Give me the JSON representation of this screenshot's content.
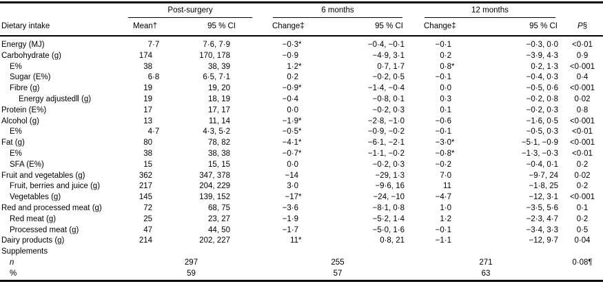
{
  "table": {
    "col_headers": {
      "dietary_intake": "Dietary intake",
      "mean": "Mean†",
      "ci": "95 % CI",
      "change": "Change‡",
      "p_label": "P",
      "p_suffix": "§"
    },
    "groups": [
      {
        "label": "Post-surgery"
      },
      {
        "label": "6 months"
      },
      {
        "label": "12 months"
      }
    ],
    "rows": [
      {
        "type": "data",
        "label": "Energy (MJ)",
        "indent": 0,
        "mean": "7·7",
        "ci_post": "7·6, 7·9",
        "change_6m": "−0·3*",
        "ci_6m": "−0·4, −0·1",
        "change_12m": "−0·1",
        "ci_12m": "−0·3, 0·0",
        "p": "<0·01"
      },
      {
        "type": "data",
        "label": "Carbohydrate (g)",
        "indent": 0,
        "mean": "174",
        "ci_post": "170, 178",
        "change_6m": "−0·9",
        "ci_6m": "−4·9, 3·1",
        "change_12m": "0·2",
        "ci_12m": "−3·9, 4·3",
        "p": "0·9"
      },
      {
        "type": "data",
        "label": "E%",
        "indent": 1,
        "mean": "38",
        "ci_post": "38, 39",
        "change_6m": "1·2*",
        "ci_6m": "0·7, 1·7",
        "change_12m": "0·8*",
        "ci_12m": "0·2, 1·3",
        "p": "<0·001"
      },
      {
        "type": "data",
        "label": "Sugar (E%)",
        "indent": 1,
        "mean": "6·8",
        "ci_post": "6·5, 7·1",
        "change_6m": "0·2",
        "ci_6m": "−0·2, 0·5",
        "change_12m": "−0·1",
        "ci_12m": "−0·4, 0·3",
        "p": "0·4"
      },
      {
        "type": "data",
        "label": "Fibre (g)",
        "indent": 1,
        "mean": "19",
        "ci_post": "19, 20",
        "change_6m": "−0·9*",
        "ci_6m": "−1·4, −0·4",
        "change_12m": "0·0",
        "ci_12m": "−0·5, 0·6",
        "p": "<0·001"
      },
      {
        "type": "data",
        "label": "Energy adjusted‖ (g)",
        "indent": 2,
        "mean": "19",
        "ci_post": "18, 19",
        "change_6m": "−0·4",
        "ci_6m": "−0·8, 0·1",
        "change_12m": "0·3",
        "ci_12m": "−0·2, 0·8",
        "p": "0·02"
      },
      {
        "type": "data",
        "label": "Protein (E%)",
        "indent": 0,
        "mean": "17",
        "ci_post": "17, 17",
        "change_6m": "0·0",
        "ci_6m": "−0·2, 0·3",
        "change_12m": "0·1",
        "ci_12m": "−0·2, 0·3",
        "p": "0·8"
      },
      {
        "type": "data",
        "label": "Alcohol (g)",
        "indent": 0,
        "mean": "13",
        "ci_post": "11, 14",
        "change_6m": "−1·9*",
        "ci_6m": "−2·8, −1·0",
        "change_12m": "−0·6",
        "ci_12m": "−1·6, 0·5",
        "p": "<0·001"
      },
      {
        "type": "data",
        "label": "E%",
        "indent": 1,
        "mean": "4·7",
        "ci_post": "4·3, 5·2",
        "change_6m": "−0·5*",
        "ci_6m": "−0·9, −0·2",
        "change_12m": "−0·1",
        "ci_12m": "−0·5, 0·3",
        "p": "<0·01"
      },
      {
        "type": "data",
        "label": "Fat (g)",
        "indent": 0,
        "mean": "80",
        "ci_post": "78, 82",
        "change_6m": "−4·1*",
        "ci_6m": "−6·1, −2·1",
        "change_12m": "−3·0*",
        "ci_12m": "−5·1, −0·9",
        "p": "<0·001"
      },
      {
        "type": "data",
        "label": "E%",
        "indent": 1,
        "mean": "38",
        "ci_post": "38, 38",
        "change_6m": "−0·7*",
        "ci_6m": "−1·1, −0·2",
        "change_12m": "−0·8*",
        "ci_12m": "−1·3, −0·3",
        "p": "<0·01"
      },
      {
        "type": "data",
        "label": "SFA (E%)",
        "indent": 1,
        "mean": "15",
        "ci_post": "15, 15",
        "change_6m": "0·0",
        "ci_6m": "−0·2, 0·3",
        "change_12m": "−0·2",
        "ci_12m": "−0·4, 0·1",
        "p": "0·2"
      },
      {
        "type": "data",
        "label": "Fruit and vegetables (g)",
        "indent": 0,
        "mean": "362",
        "ci_post": "347, 378",
        "change_6m": "−14",
        "ci_6m": "−29, 1·3",
        "change_12m": "7·0",
        "ci_12m": "−9·7, 24",
        "p": "0·02"
      },
      {
        "type": "data",
        "label": "Fruit, berries and juice (g)",
        "indent": 1,
        "mean": "217",
        "ci_post": "204, 229",
        "change_6m": "3·0",
        "ci_6m": "−9·6, 16",
        "change_12m": "11",
        "ci_12m": "−1·8, 25",
        "p": "0·2"
      },
      {
        "type": "data",
        "label": "Vegetables (g)",
        "indent": 1,
        "mean": "145",
        "ci_post": "139, 152",
        "change_6m": "−17*",
        "ci_6m": "−24, −10",
        "change_12m": "−4·7",
        "ci_12m": "−12, 3·1",
        "p": "<0·001"
      },
      {
        "type": "data",
        "label": "Red and processed meat (g)",
        "indent": 0,
        "mean": "72",
        "ci_post": "68, 75",
        "change_6m": "−3·6",
        "ci_6m": "−8·1, 0·8",
        "change_12m": "1·0",
        "ci_12m": "−3·5, 5·6",
        "p": "0·1"
      },
      {
        "type": "data",
        "label": "Red meat (g)",
        "indent": 1,
        "mean": "25",
        "ci_post": "23, 27",
        "change_6m": "−1·9",
        "ci_6m": "−5·2, 1·4",
        "change_12m": "1·2",
        "ci_12m": "−2·3, 4·7",
        "p": "0·2"
      },
      {
        "type": "data",
        "label": "Processed meat (g)",
        "indent": 1,
        "mean": "47",
        "ci_post": "44, 50",
        "change_6m": "−1·7",
        "ci_6m": "−5·0, 1·6",
        "change_12m": "−0·1",
        "ci_12m": "−3·4, 3·3",
        "p": "0·5"
      },
      {
        "type": "data",
        "label": "Dairy products (g)",
        "indent": 0,
        "mean": "214",
        "ci_post": "202, 227",
        "change_6m": "11*",
        "ci_6m": "0·8, 21",
        "change_12m": "−1·1",
        "ci_12m": "−12, 9·7",
        "p": "0·04"
      },
      {
        "type": "label",
        "label": "Supplements",
        "indent": 0
      },
      {
        "type": "group",
        "label": "n",
        "indent": 1,
        "italic": true,
        "values": [
          "297",
          "255",
          "271"
        ],
        "p": "0·08¶"
      },
      {
        "type": "group",
        "label": "%",
        "indent": 1,
        "italic": false,
        "values": [
          "59",
          "57",
          "63"
        ],
        "p": ""
      }
    ]
  }
}
